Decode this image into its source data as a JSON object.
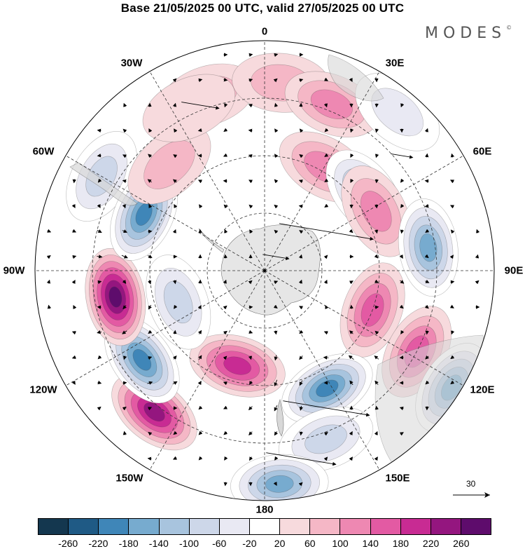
{
  "header": {
    "title": "Base 21/05/2025 00 UTC, valid 27/05/2025 00 UTC",
    "brand": "MODES"
  },
  "longitude_labels": [
    {
      "id": "0",
      "text": "0"
    },
    {
      "id": "30e",
      "text": "30E"
    },
    {
      "id": "60e",
      "text": "60E"
    },
    {
      "id": "90e",
      "text": "90E"
    },
    {
      "id": "120e",
      "text": "120E"
    },
    {
      "id": "150e",
      "text": "150E"
    },
    {
      "id": "180",
      "text": "180"
    },
    {
      "id": "150w",
      "text": "150W"
    },
    {
      "id": "120w",
      "text": "120W"
    },
    {
      "id": "90w",
      "text": "90W"
    },
    {
      "id": "60w",
      "text": "60W"
    },
    {
      "id": "30w",
      "text": "30W"
    }
  ],
  "reference_vector": {
    "label": "30"
  },
  "colorbar": {
    "colors": [
      "#14374f",
      "#1f5a85",
      "#3f86b8",
      "#77abcf",
      "#a8c4de",
      "#cdd7e9",
      "#e9e9f3",
      "#ffffff",
      "#f7dadd",
      "#f5b7c6",
      "#ee88b2",
      "#e35aa3",
      "#c82b93",
      "#94167f",
      "#5e0c6c"
    ],
    "ticks": [
      "-260",
      "-220",
      "-180",
      "-140",
      "-100",
      "-60",
      "-20",
      "20",
      "60",
      "100",
      "140",
      "180",
      "220",
      "260"
    ]
  },
  "anomaly_cells": [
    {
      "lon": 300,
      "r": 0.82,
      "value": -100
    },
    {
      "lon": 342,
      "r": 0.8,
      "value": 60
    },
    {
      "lon": 5,
      "r": 0.82,
      "value": 60
    },
    {
      "lon": 22,
      "r": 0.78,
      "value": 120
    },
    {
      "lon": 30,
      "r": 0.52,
      "value": 100
    },
    {
      "lon": 40,
      "r": 0.9,
      "value": -60
    },
    {
      "lon": 52,
      "r": 0.55,
      "value": -140
    },
    {
      "lon": 62,
      "r": 0.55,
      "value": 120
    },
    {
      "lon": 82,
      "r": 0.72,
      "value": -180
    },
    {
      "lon": 110,
      "r": 0.5,
      "value": 140
    },
    {
      "lon": 118,
      "r": 0.75,
      "value": 140
    },
    {
      "lon": 122,
      "r": 0.96,
      "value": -180
    },
    {
      "lon": 152,
      "r": 0.58,
      "value": -240
    },
    {
      "lon": 160,
      "r": 0.78,
      "value": -100
    },
    {
      "lon": 176,
      "r": 0.93,
      "value": -200
    },
    {
      "lon": 196,
      "r": 0.43,
      "value": 200
    },
    {
      "lon": 218,
      "r": 0.78,
      "value": 220
    },
    {
      "lon": 234,
      "r": 0.66,
      "value": -220
    },
    {
      "lon": 250,
      "r": 0.4,
      "value": -100
    },
    {
      "lon": 260,
      "r": 0.66,
      "value": 260
    },
    {
      "lon": 295,
      "r": 0.58,
      "value": -220
    },
    {
      "lon": 318,
      "r": 0.62,
      "value": 80
    },
    {
      "lon": 335,
      "r": 0.78,
      "value": 40
    }
  ]
}
